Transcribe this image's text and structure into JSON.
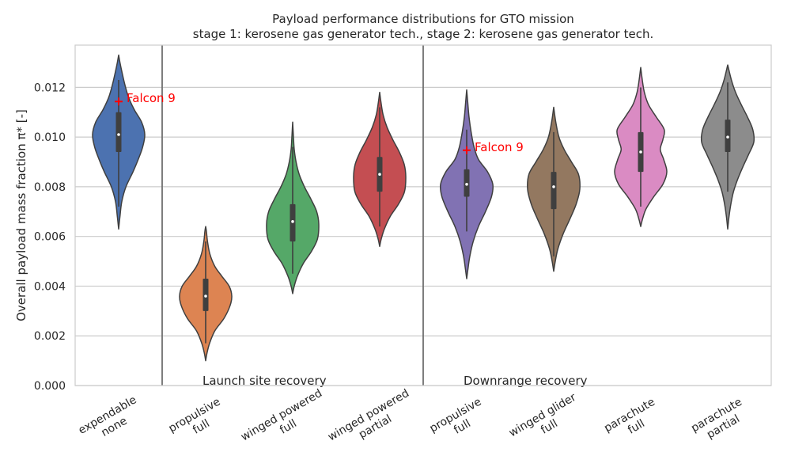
{
  "chart_data": {
    "type": "violin",
    "title": "Payload performance distributions for GTO mission",
    "subtitle": "stage 1: kerosene gas generator tech., stage 2: kerosene gas generator tech.",
    "ylabel": "Overall payload mass fraction π* [-]",
    "ylim": [
      0,
      0.0137
    ],
    "yticks": [
      "0.000",
      "0.002",
      "0.004",
      "0.006",
      "0.008",
      "0.010",
      "0.012"
    ],
    "grid": true,
    "categories": [
      {
        "line1": "expendable",
        "line2": "none",
        "color": "#4c72b0",
        "min": 0.0063,
        "max": 0.0133,
        "q1": 0.0094,
        "median": 0.0101,
        "q3": 0.011,
        "wlo": 0.0072,
        "whi": 0.0123,
        "profile": [
          [
            0.0063,
            0.0
          ],
          [
            0.0068,
            0.05
          ],
          [
            0.0074,
            0.12
          ],
          [
            0.008,
            0.28
          ],
          [
            0.0086,
            0.55
          ],
          [
            0.0091,
            0.75
          ],
          [
            0.0096,
            0.92
          ],
          [
            0.0101,
            1.0
          ],
          [
            0.0106,
            0.88
          ],
          [
            0.0111,
            0.6
          ],
          [
            0.0116,
            0.38
          ],
          [
            0.0121,
            0.24
          ],
          [
            0.0126,
            0.13
          ],
          [
            0.013,
            0.05
          ],
          [
            0.0133,
            0.0
          ]
        ]
      },
      {
        "line1": "propulsive",
        "line2": "full",
        "color": "#dd8452",
        "min": 0.001,
        "max": 0.0064,
        "q1": 0.003,
        "median": 0.0036,
        "q3": 0.0043,
        "wlo": 0.0017,
        "whi": 0.0058,
        "profile": [
          [
            0.001,
            0.0
          ],
          [
            0.0013,
            0.05
          ],
          [
            0.0017,
            0.15
          ],
          [
            0.0022,
            0.35
          ],
          [
            0.0027,
            0.7
          ],
          [
            0.0032,
            0.93
          ],
          [
            0.0036,
            1.0
          ],
          [
            0.004,
            0.9
          ],
          [
            0.0044,
            0.62
          ],
          [
            0.0048,
            0.35
          ],
          [
            0.0053,
            0.16
          ],
          [
            0.0058,
            0.07
          ],
          [
            0.0062,
            0.03
          ],
          [
            0.0064,
            0.0
          ]
        ]
      },
      {
        "line1": "winged powered",
        "line2": "full",
        "color": "#55a868",
        "min": 0.0037,
        "max": 0.0106,
        "q1": 0.0058,
        "median": 0.0066,
        "q3": 0.0073,
        "wlo": 0.0045,
        "whi": 0.0096,
        "profile": [
          [
            0.0037,
            0.0
          ],
          [
            0.004,
            0.06
          ],
          [
            0.0044,
            0.18
          ],
          [
            0.0049,
            0.4
          ],
          [
            0.0054,
            0.72
          ],
          [
            0.0059,
            0.95
          ],
          [
            0.0065,
            1.0
          ],
          [
            0.007,
            0.92
          ],
          [
            0.0075,
            0.7
          ],
          [
            0.008,
            0.45
          ],
          [
            0.0085,
            0.25
          ],
          [
            0.009,
            0.13
          ],
          [
            0.0095,
            0.06
          ],
          [
            0.01,
            0.03
          ],
          [
            0.0106,
            0.0
          ]
        ]
      },
      {
        "line1": "winged powered",
        "line2": "partial",
        "color": "#c44e52",
        "min": 0.0056,
        "max": 0.0118,
        "q1": 0.0078,
        "median": 0.0085,
        "q3": 0.0092,
        "wlo": 0.0064,
        "whi": 0.0112,
        "profile": [
          [
            0.0056,
            0.0
          ],
          [
            0.0059,
            0.06
          ],
          [
            0.0063,
            0.18
          ],
          [
            0.0068,
            0.4
          ],
          [
            0.0073,
            0.72
          ],
          [
            0.0078,
            0.95
          ],
          [
            0.0084,
            1.0
          ],
          [
            0.0089,
            0.94
          ],
          [
            0.0094,
            0.75
          ],
          [
            0.0099,
            0.5
          ],
          [
            0.0104,
            0.28
          ],
          [
            0.0109,
            0.13
          ],
          [
            0.0114,
            0.05
          ],
          [
            0.0118,
            0.0
          ]
        ]
      },
      {
        "line1": "propulsive",
        "line2": "full",
        "color": "#8172b3",
        "min": 0.0043,
        "max": 0.0119,
        "q1": 0.0076,
        "median": 0.0081,
        "q3": 0.0087,
        "wlo": 0.0062,
        "whi": 0.0103,
        "profile": [
          [
            0.0043,
            0.0
          ],
          [
            0.0047,
            0.05
          ],
          [
            0.0052,
            0.12
          ],
          [
            0.0058,
            0.25
          ],
          [
            0.0064,
            0.45
          ],
          [
            0.007,
            0.72
          ],
          [
            0.0076,
            0.95
          ],
          [
            0.0081,
            1.0
          ],
          [
            0.0086,
            0.8
          ],
          [
            0.0091,
            0.45
          ],
          [
            0.0096,
            0.28
          ],
          [
            0.0102,
            0.17
          ],
          [
            0.0108,
            0.09
          ],
          [
            0.0114,
            0.04
          ],
          [
            0.0119,
            0.0
          ]
        ]
      },
      {
        "line1": "winged glider",
        "line2": "full",
        "color": "#937860",
        "min": 0.0046,
        "max": 0.0112,
        "q1": 0.0071,
        "median": 0.008,
        "q3": 0.0086,
        "wlo": 0.0052,
        "whi": 0.0102,
        "profile": [
          [
            0.0046,
            0.0
          ],
          [
            0.005,
            0.06
          ],
          [
            0.0055,
            0.16
          ],
          [
            0.0061,
            0.36
          ],
          [
            0.0067,
            0.62
          ],
          [
            0.0073,
            0.86
          ],
          [
            0.0079,
            1.0
          ],
          [
            0.0085,
            0.95
          ],
          [
            0.009,
            0.68
          ],
          [
            0.0095,
            0.4
          ],
          [
            0.01,
            0.2
          ],
          [
            0.0106,
            0.08
          ],
          [
            0.0112,
            0.0
          ]
        ]
      },
      {
        "line1": "parachute",
        "line2": "full",
        "color": "#da8bc3",
        "min": 0.0064,
        "max": 0.0128,
        "q1": 0.0086,
        "median": 0.0094,
        "q3": 0.0102,
        "wlo": 0.0072,
        "whi": 0.012,
        "profile": [
          [
            0.0064,
            0.0
          ],
          [
            0.0067,
            0.07
          ],
          [
            0.0071,
            0.2
          ],
          [
            0.0076,
            0.5
          ],
          [
            0.0081,
            0.85
          ],
          [
            0.0086,
            1.0
          ],
          [
            0.0091,
            0.88
          ],
          [
            0.0095,
            0.75
          ],
          [
            0.0099,
            0.85
          ],
          [
            0.0103,
            0.9
          ],
          [
            0.0108,
            0.6
          ],
          [
            0.0113,
            0.3
          ],
          [
            0.0118,
            0.14
          ],
          [
            0.0123,
            0.06
          ],
          [
            0.0128,
            0.0
          ]
        ]
      },
      {
        "line1": "parachute",
        "line2": "partial",
        "color": "#8c8c8c",
        "min": 0.0063,
        "max": 0.0129,
        "q1": 0.0094,
        "median": 0.01,
        "q3": 0.0107,
        "wlo": 0.0078,
        "whi": 0.0122,
        "profile": [
          [
            0.0063,
            0.0
          ],
          [
            0.0068,
            0.05
          ],
          [
            0.0073,
            0.12
          ],
          [
            0.0078,
            0.22
          ],
          [
            0.0083,
            0.38
          ],
          [
            0.0088,
            0.58
          ],
          [
            0.0093,
            0.8
          ],
          [
            0.0098,
            1.0
          ],
          [
            0.0103,
            0.96
          ],
          [
            0.0108,
            0.76
          ],
          [
            0.0113,
            0.52
          ],
          [
            0.0118,
            0.3
          ],
          [
            0.0123,
            0.14
          ],
          [
            0.0129,
            0.0
          ]
        ]
      }
    ],
    "region_labels": [
      {
        "text": "Launch site recovery",
        "after_category": 0
      },
      {
        "text": "Downrange recovery",
        "after_category": 3
      }
    ],
    "annotations": [
      {
        "text": "Falcon 9",
        "category": 0,
        "y": 0.01143,
        "color": "#ff0000"
      },
      {
        "text": "Falcon 9",
        "category": 4,
        "y": 0.00947,
        "color": "#ff0000"
      }
    ]
  }
}
